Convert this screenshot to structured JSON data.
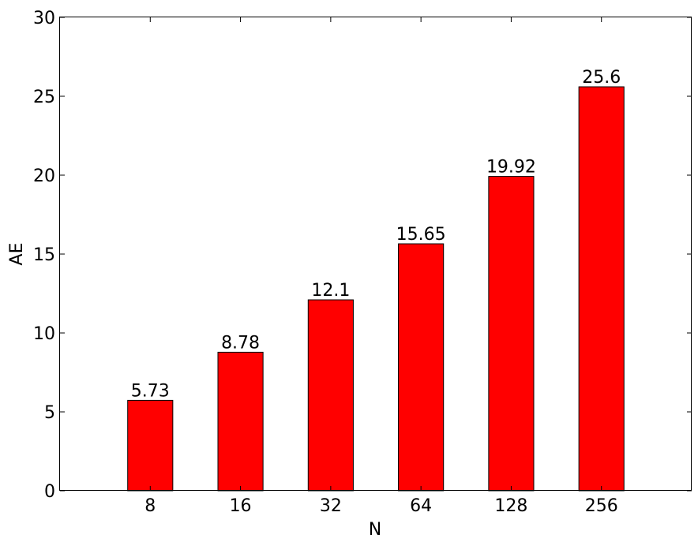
{
  "chart_data": {
    "type": "bar",
    "categories": [
      "8",
      "16",
      "32",
      "64",
      "128",
      "256"
    ],
    "values": [
      5.73,
      8.78,
      12.1,
      15.65,
      19.92,
      25.6
    ],
    "value_labels": [
      "5.73",
      "8.78",
      "12.1",
      "15.65",
      "19.92",
      "25.6"
    ],
    "title": "",
    "xlabel": "N",
    "ylabel": "AE",
    "ylim": [
      0,
      30
    ],
    "yticks": [
      "0",
      "5",
      "10",
      "15",
      "20",
      "25",
      "30"
    ],
    "grid": false,
    "legend": "none",
    "colors": {
      "bar": "#ff0000",
      "edge": "#000000"
    }
  }
}
